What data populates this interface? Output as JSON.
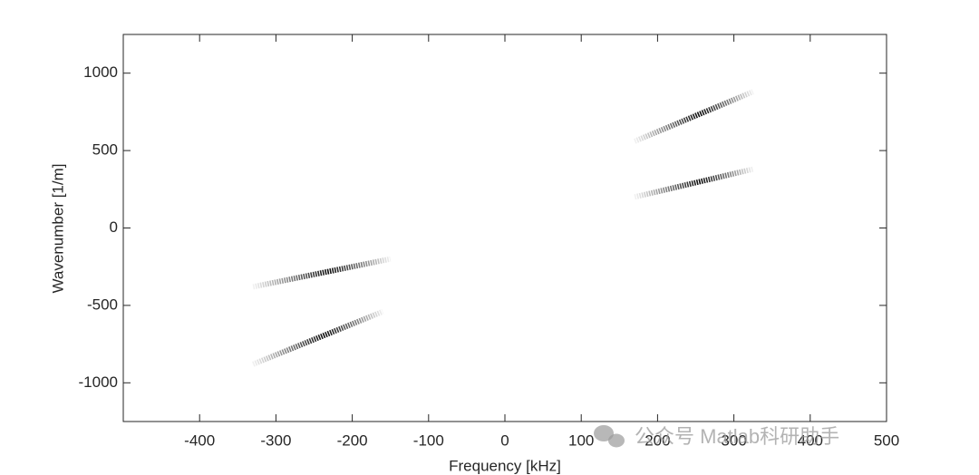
{
  "chart_data": {
    "type": "line",
    "xlabel": "Frequency [kHz]",
    "ylabel": "Wavenumber [1/m]",
    "xlim": [
      -500,
      500
    ],
    "ylim": [
      -1250,
      1250
    ],
    "xticks": [
      -400,
      -300,
      -200,
      -100,
      0,
      100,
      200,
      300,
      400,
      500
    ],
    "yticks": [
      -1000,
      -500,
      0,
      500,
      1000
    ],
    "series": [
      {
        "color": "#000000",
        "x": [
          170,
          325
        ],
        "values": [
          560,
          880
        ]
      },
      {
        "color": "#000000",
        "x": [
          170,
          325
        ],
        "values": [
          200,
          380
        ]
      },
      {
        "color": "#000000",
        "x": [
          -330,
          -150
        ],
        "values": [
          -380,
          -200
        ]
      },
      {
        "color": "#000000",
        "x": [
          -330,
          -160
        ],
        "values": [
          -880,
          -540
        ]
      }
    ],
    "watermark": "公众号 Matlab科研助手"
  }
}
